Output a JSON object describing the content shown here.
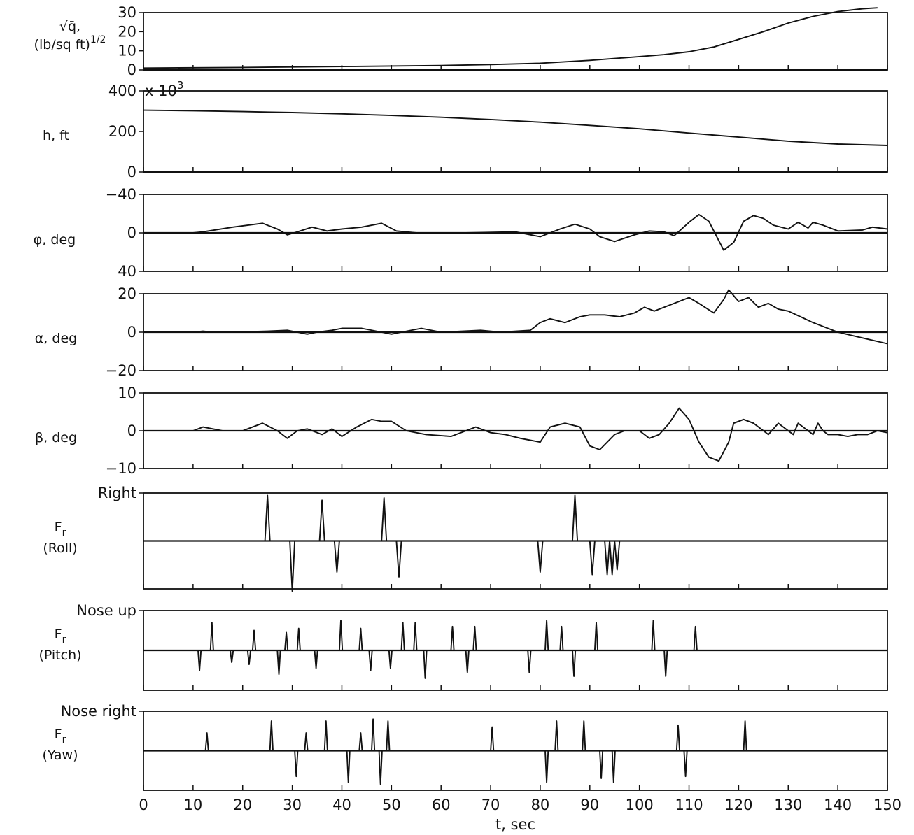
{
  "chart_data": [
    {
      "type": "line",
      "ylabel": "√q̄, (lb/sq ft)^1/2",
      "ylabel_lines": [
        "√q̄,",
        "(lb/sq ft)1/2"
      ],
      "ylim": [
        0,
        30
      ],
      "yticks": [
        "30",
        "20",
        "10",
        "0"
      ],
      "yticks_values": [
        30,
        20,
        10,
        0
      ],
      "zero_line": 0,
      "series": [
        {
          "x": [
            0,
            20,
            40,
            60,
            70,
            80,
            90,
            100,
            105,
            110,
            115,
            120,
            125,
            130,
            135,
            140,
            145,
            148
          ],
          "y": [
            1,
            1.3,
            1.8,
            2.3,
            2.8,
            3.5,
            5,
            7,
            8,
            9.5,
            12,
            16,
            20,
            24.5,
            28,
            30.5,
            32,
            32.5
          ]
        }
      ]
    },
    {
      "type": "line",
      "ylabel": "h, ft",
      "ylabel_lines": [
        "h, ft"
      ],
      "ylim": [
        0,
        400000
      ],
      "yticks": [
        "400",
        "200",
        "0"
      ],
      "yticks_values": [
        400000,
        200000,
        0
      ],
      "exponent_label": "x 10",
      "exponent_power": "3",
      "zero_line": 0,
      "series": [
        {
          "x": [
            0,
            10,
            20,
            30,
            40,
            50,
            60,
            70,
            80,
            90,
            100,
            110,
            120,
            130,
            140,
            150
          ],
          "y": [
            305000,
            302000,
            298000,
            293000,
            287000,
            279000,
            270000,
            259000,
            246000,
            230000,
            213000,
            192000,
            172000,
            152000,
            138000,
            131000
          ]
        }
      ]
    },
    {
      "type": "line",
      "ylabel": "φ, deg",
      "ylabel_lines": [
        "φ, deg"
      ],
      "ylim": [
        40,
        -40
      ],
      "yticks": [
        "−40",
        "0",
        "40"
      ],
      "yticks_values": [
        -40,
        0,
        40
      ],
      "zero_line": 0,
      "series": [
        {
          "x": [
            0,
            10,
            12,
            18,
            24,
            27,
            29,
            31,
            34,
            37,
            40,
            44,
            48,
            51,
            55,
            65,
            75,
            80,
            84,
            87,
            90,
            92,
            95,
            99,
            102,
            105,
            107,
            110,
            112,
            114,
            117,
            119,
            121,
            123,
            125,
            127,
            130,
            132,
            134,
            135,
            137,
            140,
            145,
            147,
            150
          ],
          "y": [
            0,
            0,
            -1,
            -6,
            -10,
            -4,
            2,
            -1,
            -6,
            -2,
            -4,
            -6,
            -10,
            -2,
            0,
            0,
            -1,
            4,
            -4,
            -9,
            -4,
            4,
            9,
            2,
            -2,
            -1,
            3,
            -11,
            -19,
            -12,
            18,
            10,
            -12,
            -18,
            -15,
            -8,
            -4,
            -11,
            -5,
            -11,
            -8,
            -2,
            -3,
            -6,
            -4
          ]
        }
      ]
    },
    {
      "type": "line",
      "ylabel": "α, deg",
      "ylabel_lines": [
        "α, deg"
      ],
      "ylim": [
        -20,
        20
      ],
      "yticks": [
        "20",
        "0",
        "−20"
      ],
      "yticks_values": [
        20,
        0,
        -20
      ],
      "zero_line": 0,
      "series": [
        {
          "x": [
            0,
            10,
            12,
            14,
            18,
            25,
            29,
            31,
            33,
            35,
            38,
            40,
            44,
            48,
            50,
            52,
            56,
            60,
            68,
            72,
            78,
            80,
            82,
            85,
            88,
            90,
            93,
            96,
            99,
            101,
            103,
            106,
            108,
            110,
            112,
            115,
            117,
            118,
            120,
            122,
            124,
            126,
            128,
            130,
            135,
            140,
            145,
            150
          ],
          "y": [
            0,
            0,
            0.5,
            0,
            0,
            0.5,
            1,
            0,
            -1,
            0,
            1,
            2,
            2,
            0,
            -1,
            0,
            2,
            0,
            1,
            0,
            1,
            5,
            7,
            5,
            8,
            9,
            9,
            8,
            10,
            13,
            11,
            14,
            16,
            18,
            15,
            10,
            17,
            22,
            16,
            18,
            13,
            15,
            12,
            11,
            5,
            0,
            -3,
            -6
          ]
        }
      ]
    },
    {
      "type": "line",
      "ylabel": "β, deg",
      "ylabel_lines": [
        "β, deg"
      ],
      "ylim": [
        -10,
        10
      ],
      "yticks": [
        "10",
        "0",
        "−10"
      ],
      "yticks_values": [
        10,
        0,
        -10
      ],
      "zero_line": 0,
      "series": [
        {
          "x": [
            0,
            10,
            12,
            14,
            16,
            20,
            24,
            27,
            29,
            31,
            33,
            36,
            38,
            40,
            43,
            46,
            48,
            50,
            53,
            57,
            62,
            67,
            70,
            73,
            76,
            80,
            82,
            85,
            88,
            90,
            92,
            95,
            97,
            100,
            102,
            104,
            106,
            108,
            110,
            112,
            114,
            116,
            118,
            119,
            121,
            123,
            126,
            128,
            130,
            131,
            132,
            134,
            135,
            136,
            137,
            138,
            140,
            142,
            144,
            146,
            148,
            150
          ],
          "y": [
            0,
            0,
            1,
            0.5,
            0,
            0,
            2,
            0,
            -2,
            0,
            0.5,
            -1,
            0.5,
            -1.5,
            1,
            3,
            2.5,
            2.5,
            0,
            -1,
            -1.5,
            1,
            -0.5,
            -1,
            -2,
            -3,
            1,
            2,
            1,
            -4,
            -5,
            -1,
            0,
            0,
            -2,
            -1,
            2,
            6,
            3,
            -3,
            -7,
            -8,
            -3,
            2,
            3,
            2,
            -1,
            2,
            0,
            -1,
            2,
            0,
            -1,
            2,
            0,
            -1,
            -1,
            -1.5,
            -1,
            -1,
            0,
            -0.5
          ]
        }
      ]
    },
    {
      "type": "line",
      "ylabel": "Fr (Roll)",
      "ylabel_lines": [
        "F",
        "(Roll)"
      ],
      "ylabel_sub": "r",
      "ylim": [
        -1,
        1
      ],
      "yticks": [
        "Right"
      ],
      "yticks_values": [
        1
      ],
      "zero_line": 0,
      "series": [
        {
          "x": [
            0,
            24.5,
            25,
            25.5,
            29.5,
            30,
            30.5,
            35.5,
            36,
            36.5,
            38.5,
            39,
            39.5,
            48,
            48.5,
            49,
            51,
            51.5,
            52,
            79.5,
            80,
            80.5,
            86.5,
            87,
            87.5,
            90,
            90.5,
            91,
            93,
            93.5,
            94,
            94.5,
            95,
            95.5,
            96,
            150
          ],
          "y": [
            0,
            0,
            0.95,
            0,
            0,
            -1.05,
            0,
            0,
            0.85,
            0,
            0,
            -0.65,
            0,
            0,
            0.9,
            0,
            0,
            -0.75,
            0,
            0,
            -0.65,
            0,
            0,
            0.95,
            0,
            0,
            -0.7,
            0,
            0,
            -0.7,
            0,
            -0.7,
            0,
            -0.6,
            0,
            0
          ]
        }
      ]
    },
    {
      "type": "line",
      "ylabel": "Fr (Pitch)",
      "ylabel_lines": [
        "F",
        "(Pitch)"
      ],
      "ylabel_sub": "r",
      "ylim": [
        -1,
        1
      ],
      "yticks": [
        "Nose up"
      ],
      "yticks_values": [
        1
      ],
      "zero_line": 0,
      "series": [
        {
          "x": [
            0,
            11,
            11.3,
            11.6,
            13.5,
            13.8,
            14.1,
            17.5,
            17.8,
            18.1,
            21,
            21.3,
            21.6,
            22,
            22.3,
            22.6,
            27,
            27.3,
            27.6,
            28.5,
            28.8,
            29.1,
            31,
            31.3,
            31.6,
            34.5,
            34.8,
            35.1,
            39.5,
            39.8,
            40.1,
            43.5,
            43.8,
            44.1,
            45.5,
            45.8,
            46.1,
            49.5,
            49.8,
            50.1,
            52,
            52.3,
            52.6,
            54.5,
            54.8,
            55.1,
            56.5,
            56.8,
            57.1,
            62,
            62.3,
            62.6,
            65,
            65.3,
            65.6,
            66.5,
            66.8,
            67.1,
            77.5,
            77.8,
            78.1,
            81,
            81.3,
            81.6,
            84,
            84.3,
            84.6,
            86.5,
            86.8,
            87.1,
            91,
            91.3,
            91.6,
            102.5,
            102.8,
            103.1,
            105,
            105.3,
            105.6,
            111,
            111.3,
            111.6,
            150
          ],
          "y": [
            0,
            0,
            -0.5,
            0,
            0,
            0.7,
            0,
            0,
            -0.3,
            0,
            0,
            -0.35,
            0,
            0,
            0.5,
            0,
            0,
            -0.6,
            0,
            0,
            0.45,
            0,
            0,
            0.55,
            0,
            0,
            -0.45,
            0,
            0,
            0.75,
            0,
            0,
            0.55,
            0,
            0,
            -0.5,
            0,
            0,
            -0.45,
            0,
            0,
            0.7,
            0,
            0,
            0.7,
            0,
            0,
            -0.7,
            0,
            0,
            0.6,
            0,
            0,
            -0.55,
            0,
            0,
            0.6,
            0,
            0,
            -0.55,
            0,
            0,
            0.75,
            0,
            0,
            0.6,
            0,
            0,
            -0.65,
            0,
            0,
            0.7,
            0,
            0,
            0.75,
            0,
            0,
            -0.65,
            0,
            0,
            0.6,
            0,
            0
          ]
        }
      ]
    },
    {
      "type": "line",
      "ylabel": "Fr (Yaw)",
      "ylabel_lines": [
        "F",
        "(Yaw)"
      ],
      "ylabel_sub": "r",
      "ylim": [
        -1,
        1
      ],
      "yticks": [
        "Nose right"
      ],
      "yticks_values": [
        1
      ],
      "zero_line": 0,
      "series": [
        {
          "x": [
            0,
            12.5,
            12.8,
            13.1,
            25.5,
            25.8,
            26.1,
            30.5,
            30.8,
            31.1,
            32.5,
            32.8,
            33.1,
            36.5,
            36.8,
            37.1,
            41,
            41.3,
            41.6,
            43.5,
            43.8,
            44.1,
            46,
            46.3,
            46.6,
            47.5,
            47.8,
            48.1,
            49,
            49.3,
            49.6,
            70,
            70.3,
            70.6,
            81,
            81.3,
            81.6,
            83,
            83.3,
            83.6,
            88.5,
            88.8,
            89.1,
            92,
            92.3,
            92.6,
            94.5,
            94.8,
            95.1,
            107.5,
            107.8,
            108.1,
            109,
            109.3,
            109.6,
            121,
            121.3,
            121.6,
            150
          ],
          "y": [
            0,
            0,
            0.45,
            0,
            0,
            0.75,
            0,
            0,
            -0.65,
            0,
            0,
            0.45,
            0,
            0,
            0.75,
            0,
            0,
            -0.8,
            0,
            0,
            0.45,
            0,
            0,
            0.8,
            0,
            0,
            -0.85,
            0,
            0,
            0.75,
            0,
            0,
            0.6,
            0,
            0,
            -0.8,
            0,
            0,
            0.75,
            0,
            0,
            0.75,
            0,
            0,
            -0.7,
            0,
            0,
            -0.8,
            0,
            0,
            0.65,
            0,
            0,
            -0.65,
            0,
            0,
            0.75,
            0,
            0
          ]
        }
      ]
    }
  ],
  "xaxis": {
    "xlim": [
      0,
      150
    ],
    "ticks": [
      "0",
      "10",
      "20",
      "30",
      "40",
      "50",
      "60",
      "70",
      "80",
      "90",
      "100",
      "110",
      "120",
      "130",
      "140",
      "150"
    ],
    "tick_values": [
      0,
      10,
      20,
      30,
      40,
      50,
      60,
      70,
      80,
      90,
      100,
      110,
      120,
      130,
      140,
      150
    ],
    "label": "t, sec"
  }
}
